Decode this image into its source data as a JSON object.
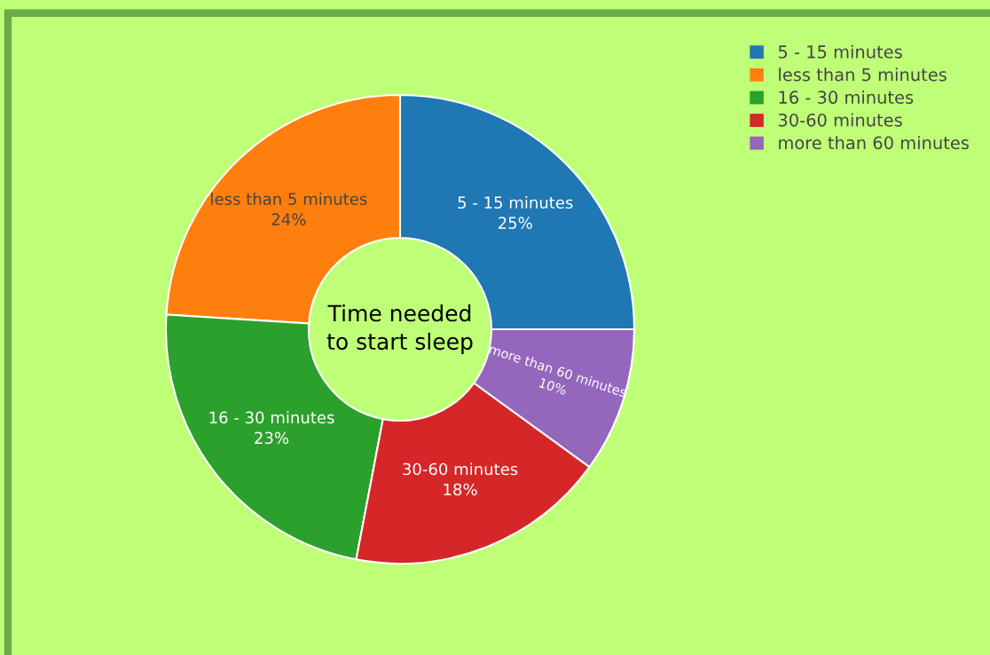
{
  "chart_data": {
    "type": "donut",
    "title": "Time needed\nto start sleep",
    "categories": [
      "5 - 15 minutes",
      "less than 5 minutes",
      "16 - 30 minutes",
      "30-60 minutes",
      "more than 60 minutes"
    ],
    "values": [
      25,
      24,
      23,
      18,
      10
    ],
    "colors": [
      "#1f77b4",
      "#ff7f0e",
      "#2ca02c",
      "#d62728",
      "#9467bd"
    ],
    "value_labels": [
      "25%",
      "24%",
      "23%",
      "18%",
      "10%"
    ],
    "legend": "top right"
  }
}
